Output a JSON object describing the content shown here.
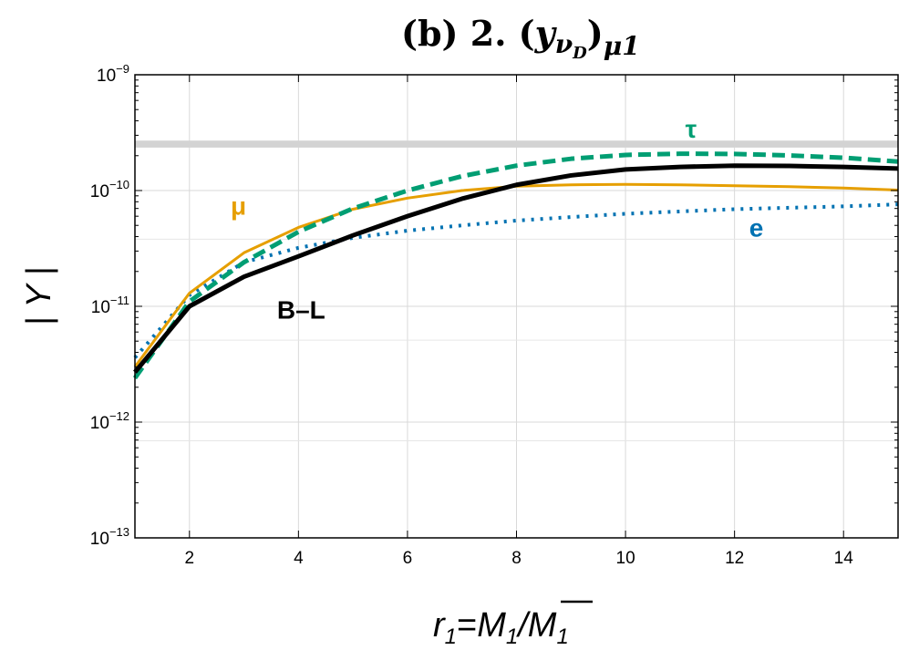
{
  "chart_data": {
    "type": "line",
    "title": {
      "main": "(b) 2.  (",
      "var": "y",
      "var_sub": "ν",
      "var_subsub": "D",
      "close": ")",
      "index": "μ1"
    },
    "xlabel": {
      "r": "r",
      "r_sub": "1",
      "eq": "=",
      "m": "M",
      "m_sub": "1",
      "slash": "/",
      "mbar": "M",
      "mbar_sub": "1"
    },
    "ylabel": "| Y |",
    "x_scale": "linear",
    "y_scale": "log",
    "xlim": [
      1,
      15
    ],
    "ylim": [
      1e-13,
      1e-09
    ],
    "grid": true,
    "x_ticks": [
      {
        "value": 2,
        "label": "2"
      },
      {
        "value": 4,
        "label": "4"
      },
      {
        "value": 6,
        "label": "6"
      },
      {
        "value": 8,
        "label": "8"
      },
      {
        "value": 10,
        "label": "10"
      },
      {
        "value": 12,
        "label": "12"
      },
      {
        "value": 14,
        "label": "14"
      }
    ],
    "y_ticks": [
      {
        "value": 1e-13,
        "base": "10",
        "exp": "−13"
      },
      {
        "value": 1e-12,
        "base": "10",
        "exp": "−12"
      },
      {
        "value": 1e-11,
        "base": "10",
        "exp": "−11"
      },
      {
        "value": 1e-10,
        "base": "10",
        "exp": "−10"
      },
      {
        "value": 1e-09,
        "base": "10",
        "exp": "−9"
      }
    ],
    "minor_y_gridlines": [
      6.9e-13,
      5.1e-12,
      3.8e-11
    ],
    "reference_band": {
      "y_low": 2.35e-10,
      "y_high": 2.7e-10,
      "color": "#d3d3d3"
    },
    "series": [
      {
        "name": "B–L",
        "color": "#000000",
        "style": "solid",
        "width": 5,
        "x": [
          1,
          2,
          3,
          4,
          5,
          6,
          7,
          8,
          9,
          10,
          11,
          12,
          13,
          14,
          15
        ],
        "y": [
          2.7e-12,
          1e-11,
          1.8e-11,
          2.7e-11,
          4.1e-11,
          6e-11,
          8.5e-11,
          1.12e-10,
          1.35e-10,
          1.52e-10,
          1.6e-10,
          1.64e-10,
          1.63e-10,
          1.6e-10,
          1.55e-10
        ]
      },
      {
        "name": "μ",
        "color": "#e69f00",
        "style": "solid",
        "width": 3,
        "x": [
          1,
          2,
          3,
          4,
          5,
          6,
          7,
          8,
          9,
          10,
          11,
          12,
          13,
          14,
          15
        ],
        "y": [
          3e-12,
          1.3e-11,
          2.9e-11,
          4.8e-11,
          6.9e-11,
          8.6e-11,
          1e-10,
          1.09e-10,
          1.12e-10,
          1.13e-10,
          1.12e-10,
          1.1e-10,
          1.08e-10,
          1.05e-10,
          1.01e-10
        ]
      },
      {
        "name": "τ",
        "color": "#009e73",
        "style": "dashed",
        "width": 5,
        "x": [
          1,
          2,
          3,
          4,
          5,
          6,
          7,
          8,
          9,
          10,
          11,
          12,
          13,
          14,
          15
        ],
        "y": [
          2.4e-12,
          1.1e-11,
          2.4e-11,
          4.4e-11,
          7e-11,
          1e-10,
          1.33e-10,
          1.64e-10,
          1.88e-10,
          2.03e-10,
          2.08e-10,
          2.07e-10,
          2.01e-10,
          1.92e-10,
          1.78e-10
        ]
      },
      {
        "name": "e",
        "color": "#0072b2",
        "style": "dotted",
        "width": 4,
        "x": [
          1,
          2,
          3,
          4,
          5,
          6,
          7,
          8,
          9,
          10,
          11,
          12,
          13,
          14,
          15
        ],
        "y": [
          3.6e-12,
          1.25e-11,
          2.4e-11,
          3.2e-11,
          3.9e-11,
          4.5e-11,
          5e-11,
          5.5e-11,
          5.9e-11,
          6.3e-11,
          6.6e-11,
          6.9e-11,
          7.1e-11,
          7.3e-11,
          7.6e-11
        ]
      }
    ],
    "annotations": [
      {
        "series": "μ",
        "text": "μ",
        "x": 2.9,
        "y": 6.2e-11
      },
      {
        "series": "τ",
        "text": "τ",
        "x": 11.2,
        "y": 2.85e-10
      },
      {
        "series": "e",
        "text": "e",
        "x": 12.4,
        "y": 4e-11
      },
      {
        "series": "B–L",
        "text": "B–L",
        "x": 4.05,
        "y": 7.8e-12
      }
    ]
  }
}
